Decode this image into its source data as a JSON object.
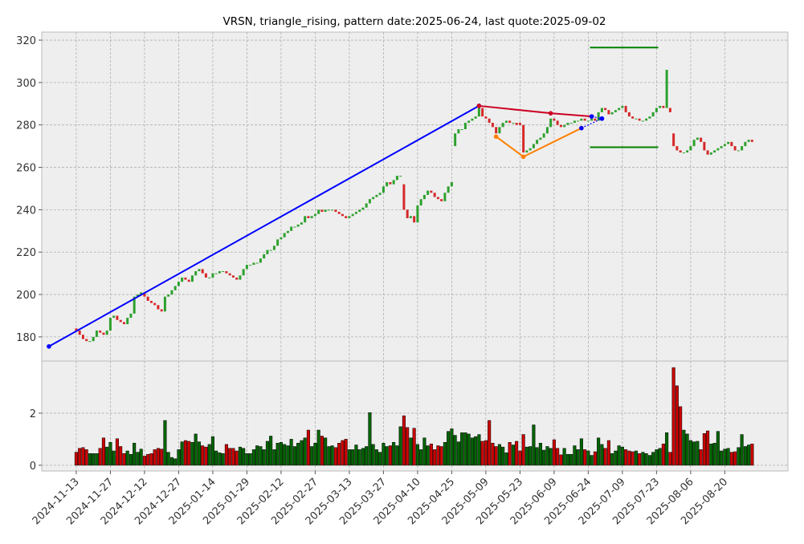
{
  "chart_data": {
    "type": "candlestick",
    "title": "VRSN, triangle_rising, pattern date:2025-06-24, last quote:2025-09-02",
    "xlim": [
      -10.1,
      208.5
    ],
    "xticks": [
      {
        "value": 0,
        "label": "2024-11-13"
      },
      {
        "value": 10,
        "label": "2024-11-27"
      },
      {
        "value": 20,
        "label": "2024-12-12"
      },
      {
        "value": 30,
        "label": "2024-12-27"
      },
      {
        "value": 40,
        "label": "2025-01-14"
      },
      {
        "value": 50,
        "label": "2025-01-29"
      },
      {
        "value": 60,
        "label": "2025-02-12"
      },
      {
        "value": 70,
        "label": "2025-02-27"
      },
      {
        "value": 80,
        "label": "2025-03-13"
      },
      {
        "value": 90,
        "label": "2025-03-27"
      },
      {
        "value": 100,
        "label": "2025-04-10"
      },
      {
        "value": 110,
        "label": "2025-04-25"
      },
      {
        "value": 120,
        "label": "2025-05-09"
      },
      {
        "value": 130,
        "label": "2025-05-23"
      },
      {
        "value": 140,
        "label": "2025-06-09"
      },
      {
        "value": 150,
        "label": "2025-06-24"
      },
      {
        "value": 160,
        "label": "2025-07-09"
      },
      {
        "value": 170,
        "label": "2025-07-23"
      },
      {
        "value": 180,
        "label": "2025-08-06"
      },
      {
        "value": 190,
        "label": "2025-08-20"
      }
    ],
    "ylim": [
      168.6,
      323.8
    ],
    "yticks": [
      180,
      200,
      220,
      240,
      260,
      280,
      300,
      320
    ],
    "volume_ylim": [
      -0.22,
      4.0
    ],
    "volume_yticks": [
      0,
      2
    ],
    "grid": true,
    "up_color": "#2ca02c",
    "down_color": "#d62728",
    "volume_up_color": "#006400",
    "volume_down_color": "#cc0000",
    "open": [
      184,
      183,
      181,
      179,
      178,
      178,
      180,
      183,
      182,
      181,
      183,
      189,
      190,
      188,
      187,
      186,
      189,
      191,
      199,
      200,
      201,
      199,
      197,
      196,
      195,
      193,
      192,
      199,
      200,
      202,
      204,
      206,
      208,
      207,
      206,
      209,
      211,
      212,
      210,
      208,
      208,
      210,
      210,
      211,
      211,
      210,
      209,
      208,
      207,
      209,
      212,
      214,
      214,
      215,
      215,
      217,
      219,
      221,
      221,
      223,
      226,
      227,
      229,
      230,
      232,
      232,
      233,
      234,
      237,
      236,
      237,
      238,
      240,
      239,
      240,
      240,
      240,
      239,
      238,
      237,
      236,
      237,
      238,
      239,
      240,
      241,
      243,
      245,
      246,
      247,
      248,
      251,
      253,
      252,
      254,
      256,
      252,
      240,
      236,
      237,
      234,
      242,
      245,
      247,
      249,
      248,
      246,
      245,
      244,
      248,
      251,
      270,
      276,
      278,
      278,
      281,
      282,
      283,
      284,
      288,
      284,
      283,
      281,
      279,
      276,
      279,
      281,
      282,
      281,
      281,
      281,
      280,
      267,
      268,
      269,
      271,
      273,
      274,
      276,
      279,
      283,
      282,
      280,
      279,
      280,
      281,
      281,
      282,
      282,
      283,
      282,
      282,
      283,
      282,
      286,
      288,
      287,
      285,
      286,
      287,
      288,
      289,
      286,
      284,
      283,
      283,
      282,
      282,
      283,
      284,
      286,
      288,
      289,
      288,
      288,
      276,
      270,
      268,
      267,
      267,
      268,
      270,
      273,
      274,
      272,
      268,
      266,
      267,
      268,
      269,
      270,
      271,
      272,
      270,
      268,
      268,
      270,
      272,
      273
    ],
    "close": [
      183,
      181,
      179,
      178,
      178,
      180,
      183,
      182,
      181,
      183,
      189,
      190,
      188,
      187,
      186,
      189,
      191,
      199,
      200,
      201,
      199,
      197,
      196,
      195,
      193,
      192,
      199,
      200,
      202,
      204,
      206,
      208,
      207,
      206,
      209,
      211,
      212,
      210,
      208,
      208,
      210,
      210,
      211,
      211,
      210,
      209,
      208,
      207,
      209,
      212,
      214,
      214,
      215,
      215,
      217,
      219,
      221,
      221,
      223,
      226,
      227,
      229,
      230,
      232,
      232,
      233,
      234,
      237,
      236,
      237,
      238,
      240,
      239,
      240,
      240,
      240,
      239,
      238,
      237,
      236,
      237,
      238,
      239,
      240,
      241,
      243,
      245,
      246,
      247,
      248,
      251,
      253,
      252,
      254,
      256,
      256,
      240,
      236,
      237,
      234,
      242,
      245,
      247,
      249,
      248,
      246,
      245,
      244,
      248,
      251,
      253,
      276,
      278,
      278,
      281,
      282,
      283,
      284,
      288,
      284,
      283,
      281,
      279,
      276,
      279,
      281,
      282,
      281,
      281,
      280,
      280,
      267,
      268,
      269,
      271,
      273,
      274,
      276,
      279,
      283,
      282,
      280,
      279,
      280,
      281,
      281,
      282,
      282,
      283,
      282,
      282,
      283,
      282,
      286,
      288,
      287,
      285,
      286,
      287,
      288,
      289,
      286,
      284,
      283,
      283,
      282,
      282,
      283,
      284,
      286,
      288,
      289,
      288,
      306,
      286,
      270,
      268,
      267,
      267,
      268,
      270,
      273,
      274,
      272,
      268,
      266,
      267,
      268,
      269,
      270,
      271,
      272,
      270,
      268,
      268,
      270,
      272,
      273,
      272
    ],
    "volume": [
      0.5,
      0.65,
      0.68,
      0.6,
      0.45,
      0.45,
      0.45,
      0.65,
      1.05,
      0.7,
      0.88,
      0.55,
      1.02,
      0.72,
      0.45,
      0.55,
      0.42,
      0.85,
      0.5,
      0.62,
      0.35,
      0.42,
      0.45,
      0.6,
      0.65,
      0.62,
      1.72,
      0.5,
      0.3,
      0.25,
      0.6,
      0.9,
      0.95,
      0.92,
      0.88,
      1.2,
      0.9,
      0.75,
      0.7,
      0.8,
      1.1,
      0.55,
      0.48,
      0.45,
      0.8,
      0.65,
      0.65,
      0.55,
      0.7,
      0.65,
      0.45,
      0.45,
      0.6,
      0.75,
      0.72,
      0.6,
      0.92,
      1.12,
      0.6,
      0.85,
      0.88,
      0.8,
      0.75,
      1.0,
      0.72,
      0.85,
      0.95,
      1.05,
      1.35,
      0.72,
      0.85,
      1.35,
      1.12,
      1.05,
      0.72,
      0.75,
      0.68,
      0.85,
      0.95,
      1.0,
      0.6,
      0.6,
      0.78,
      0.6,
      0.65,
      0.72,
      2.02,
      0.8,
      0.6,
      0.5,
      0.85,
      0.72,
      0.75,
      0.88,
      0.75,
      1.48,
      1.9,
      1.45,
      1.05,
      1.42,
      0.8,
      0.6,
      1.05,
      0.75,
      0.82,
      0.6,
      0.75,
      0.72,
      0.88,
      1.3,
      1.4,
      1.15,
      0.9,
      1.25,
      1.25,
      1.2,
      1.05,
      1.1,
      1.18,
      0.92,
      0.95,
      1.72,
      0.85,
      0.72,
      0.8,
      0.7,
      0.48,
      0.88,
      0.78,
      0.92,
      0.55,
      1.18,
      0.7,
      0.72,
      1.55,
      0.68,
      0.85,
      0.58,
      0.72,
      0.65,
      0.98,
      0.65,
      0.4,
      0.65,
      0.42,
      0.42,
      0.75,
      0.6,
      1.02,
      0.6,
      0.55,
      0.38,
      0.52,
      1.05,
      0.8,
      0.65,
      0.95,
      0.45,
      0.55,
      0.75,
      0.7,
      0.6,
      0.55,
      0.52,
      0.55,
      0.45,
      0.5,
      0.45,
      0.38,
      0.5,
      0.6,
      0.65,
      0.82,
      1.25,
      0.5,
      3.75,
      3.05,
      2.25,
      1.35,
      1.2,
      0.95,
      0.9,
      0.92,
      0.6,
      1.22,
      1.32,
      0.82,
      0.85,
      1.3,
      0.55,
      0.62,
      0.65,
      0.5,
      0.52,
      0.68,
      1.18,
      0.72,
      0.78,
      0.82
    ],
    "lines": [
      {
        "color": "#0000ff",
        "style": "solid",
        "x": [
          -8,
          118
        ],
        "y": [
          175.5,
          289
        ]
      },
      {
        "color": "#cc0022",
        "style": "solid",
        "x": [
          118,
          139,
          151
        ],
        "y": [
          289,
          285.5,
          284
        ]
      },
      {
        "color": "#ff8000",
        "style": "solid",
        "x": [
          123,
          131,
          148
        ],
        "y": [
          274.5,
          265,
          278.5
        ]
      },
      {
        "color": "#0000ff",
        "style": "dotted",
        "x": [
          148,
          154
        ],
        "y": [
          278.5,
          283
        ]
      },
      {
        "color": "#0000ff",
        "style": "dotted",
        "x": [
          151,
          154
        ],
        "y": [
          284,
          283
        ]
      },
      {
        "color": "#008000",
        "style": "solid",
        "x": [
          150.5,
          170.5
        ],
        "y": [
          316.5,
          316.5
        ]
      },
      {
        "color": "#008000",
        "style": "solid",
        "x": [
          150.5,
          170.5
        ],
        "y": [
          269.5,
          269.5
        ]
      }
    ]
  }
}
